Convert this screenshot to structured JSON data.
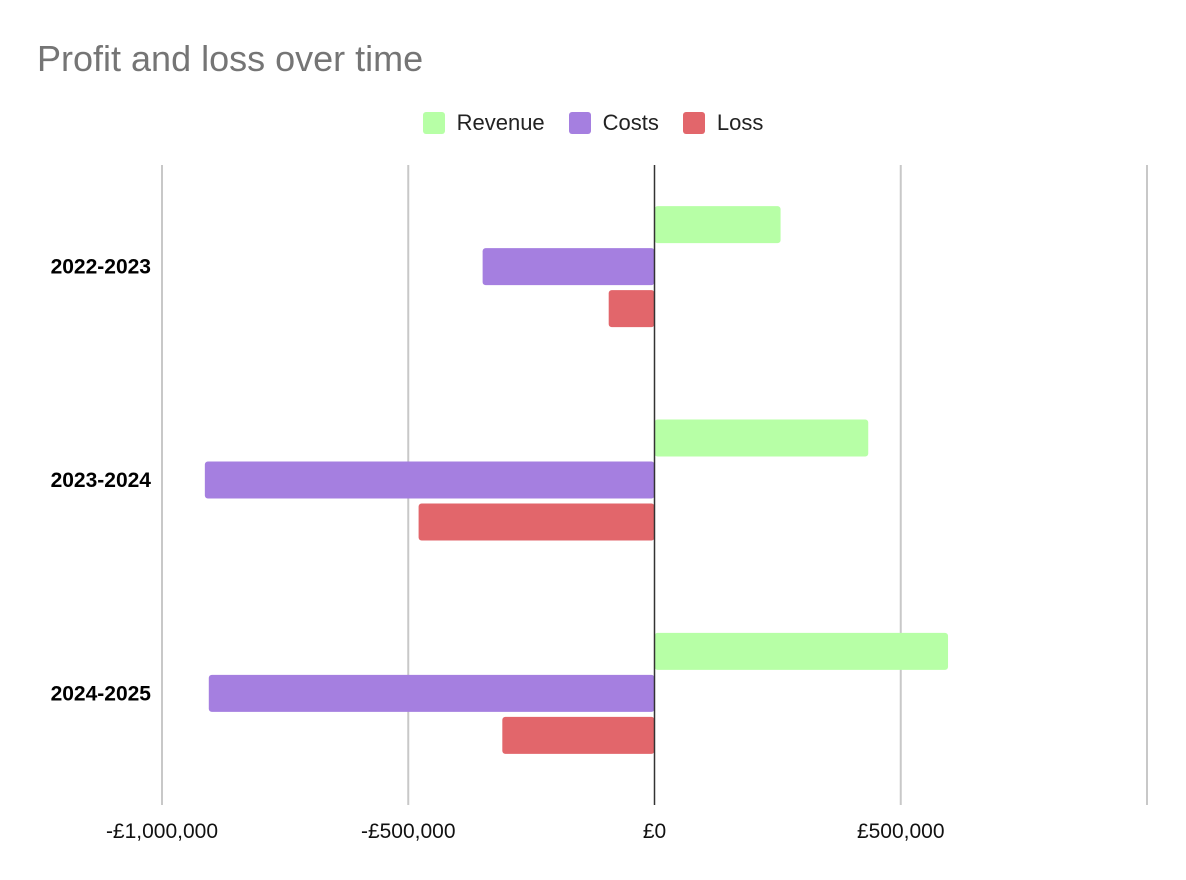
{
  "chart_data": {
    "type": "bar",
    "orientation": "horizontal",
    "title": "Profit and loss over time",
    "categories": [
      "2022-2023",
      "2023-2024",
      "2024-2025"
    ],
    "series": [
      {
        "name": "Revenue",
        "color": "#b7ffa6",
        "values": [
          256000,
          434000,
          596000
        ]
      },
      {
        "name": "Costs",
        "color": "#a57fe0",
        "values": [
          -349000,
          -913000,
          -905000
        ]
      },
      {
        "name": "Loss",
        "color": "#e2666b",
        "values": [
          -93000,
          -479000,
          -309000
        ]
      }
    ],
    "xlim": [
      -1000000,
      1000000
    ],
    "xticks": [
      -1000000,
      -500000,
      0,
      500000,
      1000000
    ],
    "xtick_labels": [
      "-£1,000,000",
      "-£500,000",
      "£0",
      "£500,000",
      ""
    ],
    "xlabel": "",
    "ylabel": "",
    "grid": true,
    "legend_position": "top-center"
  }
}
